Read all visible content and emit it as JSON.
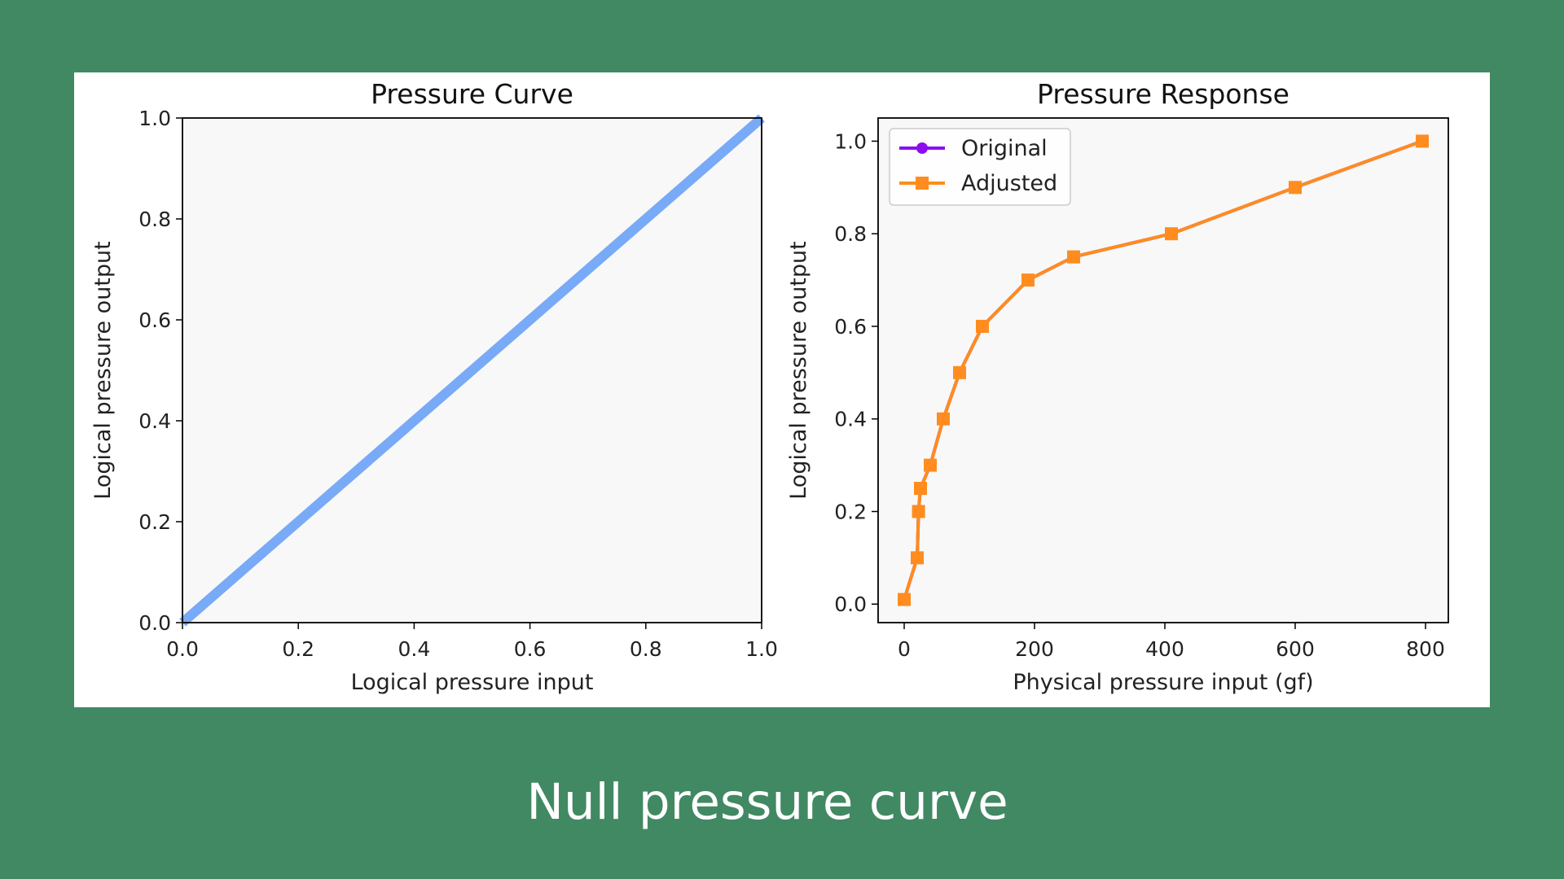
{
  "caption": "Null pressure curve",
  "colors": {
    "background": "#418963",
    "panel": "#ffffff",
    "plot_area": "#f8f8f8",
    "curve": "#78aaf7",
    "original": "#8c0ef0",
    "adjusted": "#ff8c1e"
  },
  "chart_data": [
    {
      "type": "line",
      "title": "Pressure Curve",
      "xlabel": "Logical pressure input",
      "ylabel": "Logical pressure output",
      "xlim": [
        0,
        1
      ],
      "ylim": [
        0,
        1
      ],
      "xticks": [
        "0.0",
        "0.2",
        "0.4",
        "0.6",
        "0.8",
        "1.0"
      ],
      "yticks": [
        "0.0",
        "0.2",
        "0.4",
        "0.6",
        "0.8",
        "1.0"
      ],
      "grid": false,
      "series": [
        {
          "x": [
            0,
            1
          ],
          "y": [
            0,
            1
          ],
          "color": "#78aaf7"
        }
      ]
    },
    {
      "type": "line",
      "title": "Pressure Response",
      "xlabel": "Physical pressure input (gf)",
      "ylabel": "Logical pressure output",
      "xlim": [
        -40,
        835
      ],
      "ylim": [
        -0.04,
        1.05
      ],
      "xticks": [
        "0",
        "200",
        "400",
        "600",
        "800"
      ],
      "yticks": [
        "0.0",
        "0.2",
        "0.4",
        "0.6",
        "0.8",
        "1.0"
      ],
      "grid": false,
      "legend": "top-left",
      "series": [
        {
          "name": "Original",
          "marker": "circle",
          "color": "#8c0ef0",
          "x": [
            0,
            20,
            22,
            25,
            40,
            60,
            85,
            120,
            190,
            260,
            410,
            600,
            795
          ],
          "y": [
            0.01,
            0.1,
            0.2,
            0.25,
            0.3,
            0.4,
            0.5,
            0.6,
            0.7,
            0.75,
            0.8,
            0.9,
            1.0
          ]
        },
        {
          "name": "Adjusted",
          "marker": "square",
          "color": "#ff8c1e",
          "x": [
            0,
            20,
            22,
            25,
            40,
            60,
            85,
            120,
            190,
            260,
            410,
            600,
            795
          ],
          "y": [
            0.01,
            0.1,
            0.2,
            0.25,
            0.3,
            0.4,
            0.5,
            0.6,
            0.7,
            0.75,
            0.8,
            0.9,
            1.0
          ]
        }
      ]
    }
  ]
}
